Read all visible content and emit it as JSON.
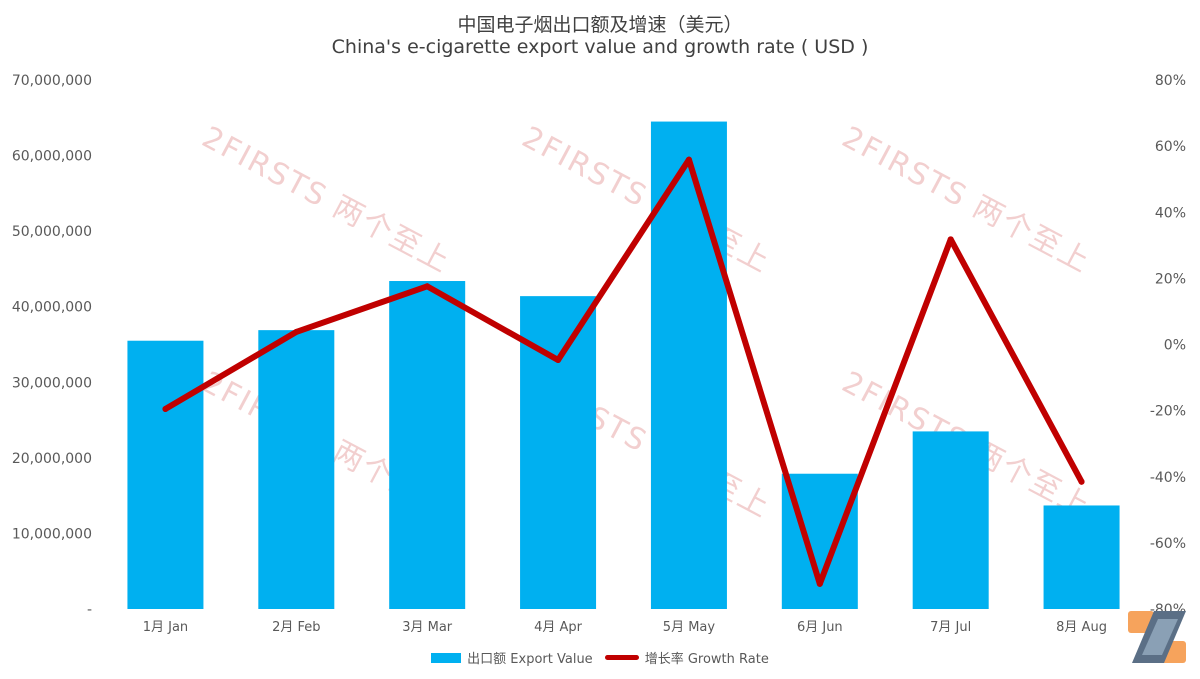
{
  "title": "中国电子烟出口额及增速（美元）",
  "subtitle": "China's e-cigarette export value and growth rate ( USD )",
  "watermark_text": "2FIRSTS 两个至上",
  "colors": {
    "bar": "#00b0f0",
    "line": "#c00000",
    "axis_text": "#595959",
    "title": "#404040"
  },
  "legend": {
    "bar_label": "出口额 Export Value",
    "line_label": "增长率 Growth Rate",
    "position": "bottom"
  },
  "chart_data": {
    "type": "bar",
    "categories": [
      "1月 Jan",
      "2月 Feb",
      "3月 Mar",
      "4月 Apr",
      "5月 May",
      "6月 Jun",
      "7月 Jul",
      "8月 Aug"
    ],
    "series": [
      {
        "name": "出口额 Export Value",
        "type": "bar",
        "axis": "left",
        "values": [
          35500000,
          36900000,
          43400000,
          41400000,
          64500000,
          17900000,
          23500000,
          13700000
        ]
      },
      {
        "name": "增长率 Growth Rate",
        "type": "line",
        "axis": "right",
        "values": [
          -19.5,
          3.8,
          17.6,
          -4.7,
          55.9,
          -72.4,
          31.8,
          -41.5
        ]
      }
    ],
    "y_left": {
      "range": [
        0,
        70000000
      ],
      "ticks": [
        0,
        10000000,
        20000000,
        30000000,
        40000000,
        50000000,
        60000000,
        70000000
      ],
      "tick_labels": [
        "-",
        "10,000,000",
        "20,000,000",
        "30,000,000",
        "40,000,000",
        "50,000,000",
        "60,000,000",
        "70,000,000"
      ]
    },
    "y_right": {
      "range": [
        -80,
        80
      ],
      "unit": "%",
      "ticks": [
        -80,
        -60,
        -40,
        -20,
        0,
        20,
        40,
        60,
        80
      ],
      "tick_labels": [
        "-80%",
        "-60%",
        "-40%",
        "-20%",
        "0%",
        "20%",
        "40%",
        "60%",
        "80%"
      ]
    },
    "grid": false
  }
}
